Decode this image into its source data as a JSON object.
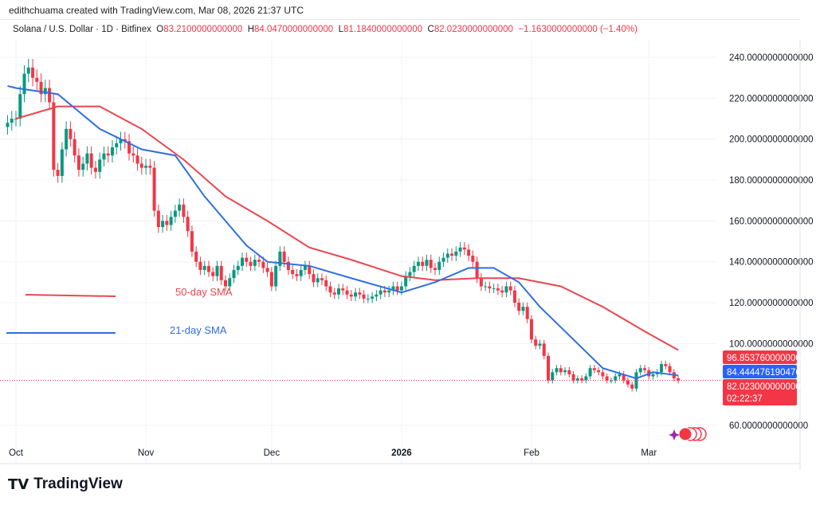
{
  "credit": "edithchuama created with TradingView.com, Mar 08, 2026 21:37 UTC",
  "symbol": "Solana / U.S. Dollar · 1D · Bitfinex",
  "ohlc": {
    "o_label": "O",
    "o": "83.2100000000000",
    "h_label": "H",
    "h": "84.0470000000000",
    "l_label": "L",
    "l": "81.1840000000000",
    "c_label": "C",
    "c": "82.0230000000000",
    "change": "−1.1630000000000 (−1.40%)"
  },
  "colors": {
    "up": "#089981",
    "down": "#f23645",
    "sma50": "#e8474f",
    "sma21": "#2f6fe0"
  },
  "chart_data": {
    "type": "candlestick",
    "ylim": [
      50,
      250
    ],
    "yticks": [
      "240.0000000000000",
      "220.0000000000000",
      "200.0000000000000",
      "180.0000000000000",
      "160.0000000000000",
      "140.0000000000000",
      "120.0000000000000",
      "100.0000000000000",
      "60.0000000000000"
    ],
    "ytick_values": [
      240,
      220,
      200,
      180,
      160,
      140,
      120,
      100,
      60
    ],
    "xticks": [
      {
        "label": "Oct",
        "day": 0
      },
      {
        "label": "Nov",
        "day": 31
      },
      {
        "label": "Dec",
        "day": 61
      },
      {
        "label": "2026",
        "day": 92
      },
      {
        "label": "Feb",
        "day": 123
      },
      {
        "label": "Mar",
        "day": 151
      }
    ],
    "start_day": -2,
    "closes": [
      208,
      210,
      210,
      222,
      232,
      235,
      230,
      228,
      222,
      225,
      218,
      185,
      182,
      195,
      205,
      200,
      192,
      185,
      188,
      193,
      186,
      184,
      190,
      193,
      192,
      196,
      198,
      200,
      199,
      193,
      192,
      188,
      186,
      187,
      186,
      165,
      157,
      160,
      158,
      162,
      165,
      168,
      162,
      155,
      145,
      140,
      136,
      138,
      135,
      133,
      138,
      131,
      128,
      132,
      136,
      138,
      142,
      140,
      138,
      141,
      140,
      137,
      135,
      128,
      138,
      145,
      140,
      136,
      134,
      133,
      136,
      138,
      134,
      130,
      132,
      131,
      128,
      125,
      124,
      127,
      126,
      124,
      123,
      125,
      124,
      122,
      122,
      123,
      124,
      126,
      125,
      126,
      128,
      126,
      128,
      133,
      135,
      138,
      140,
      138,
      141,
      137,
      136,
      140,
      142,
      144,
      143,
      145,
      147,
      146,
      143,
      140,
      132,
      128,
      128,
      127,
      127,
      126,
      125,
      128,
      126,
      120,
      116,
      118,
      112,
      102,
      99,
      100,
      94,
      82,
      86,
      88,
      86,
      87,
      85,
      82,
      83,
      82,
      84,
      88,
      87,
      86,
      84,
      82,
      82,
      84,
      85,
      82,
      80,
      78,
      86,
      88,
      87,
      84,
      85,
      86,
      90,
      89,
      86,
      83,
      82.023
    ],
    "series": [
      {
        "name": "50-day SMA",
        "points": [
          [
            0,
            210
          ],
          [
            10,
            216
          ],
          [
            20,
            216
          ],
          [
            30,
            205
          ],
          [
            40,
            190
          ],
          [
            50,
            172
          ],
          [
            60,
            160
          ],
          [
            70,
            147
          ],
          [
            80,
            141
          ],
          [
            92,
            133
          ],
          [
            100,
            131
          ],
          [
            110,
            132
          ],
          [
            120,
            132
          ],
          [
            130,
            128
          ],
          [
            140,
            118
          ],
          [
            150,
            106
          ],
          [
            158,
            96.85376
          ]
        ]
      },
      {
        "name": "21-day SMA",
        "points": [
          [
            -2,
            226
          ],
          [
            0,
            225
          ],
          [
            10,
            222
          ],
          [
            20,
            205
          ],
          [
            30,
            195
          ],
          [
            38,
            192
          ],
          [
            45,
            172
          ],
          [
            50,
            160
          ],
          [
            55,
            148
          ],
          [
            60,
            140
          ],
          [
            70,
            138
          ],
          [
            80,
            132
          ],
          [
            92,
            125
          ],
          [
            100,
            130
          ],
          [
            108,
            137
          ],
          [
            114,
            137
          ],
          [
            120,
            130
          ],
          [
            125,
            118
          ],
          [
            130,
            108
          ],
          [
            140,
            88
          ],
          [
            148,
            83
          ],
          [
            152,
            86
          ],
          [
            158,
            84.4444761904763
          ]
        ]
      }
    ],
    "price_labels": {
      "sma50": "96.8537600000000",
      "sma21": "84.4444761904763",
      "last": "82.0230000000000",
      "countdown": "02:22:37"
    }
  },
  "logo": "TradingView"
}
